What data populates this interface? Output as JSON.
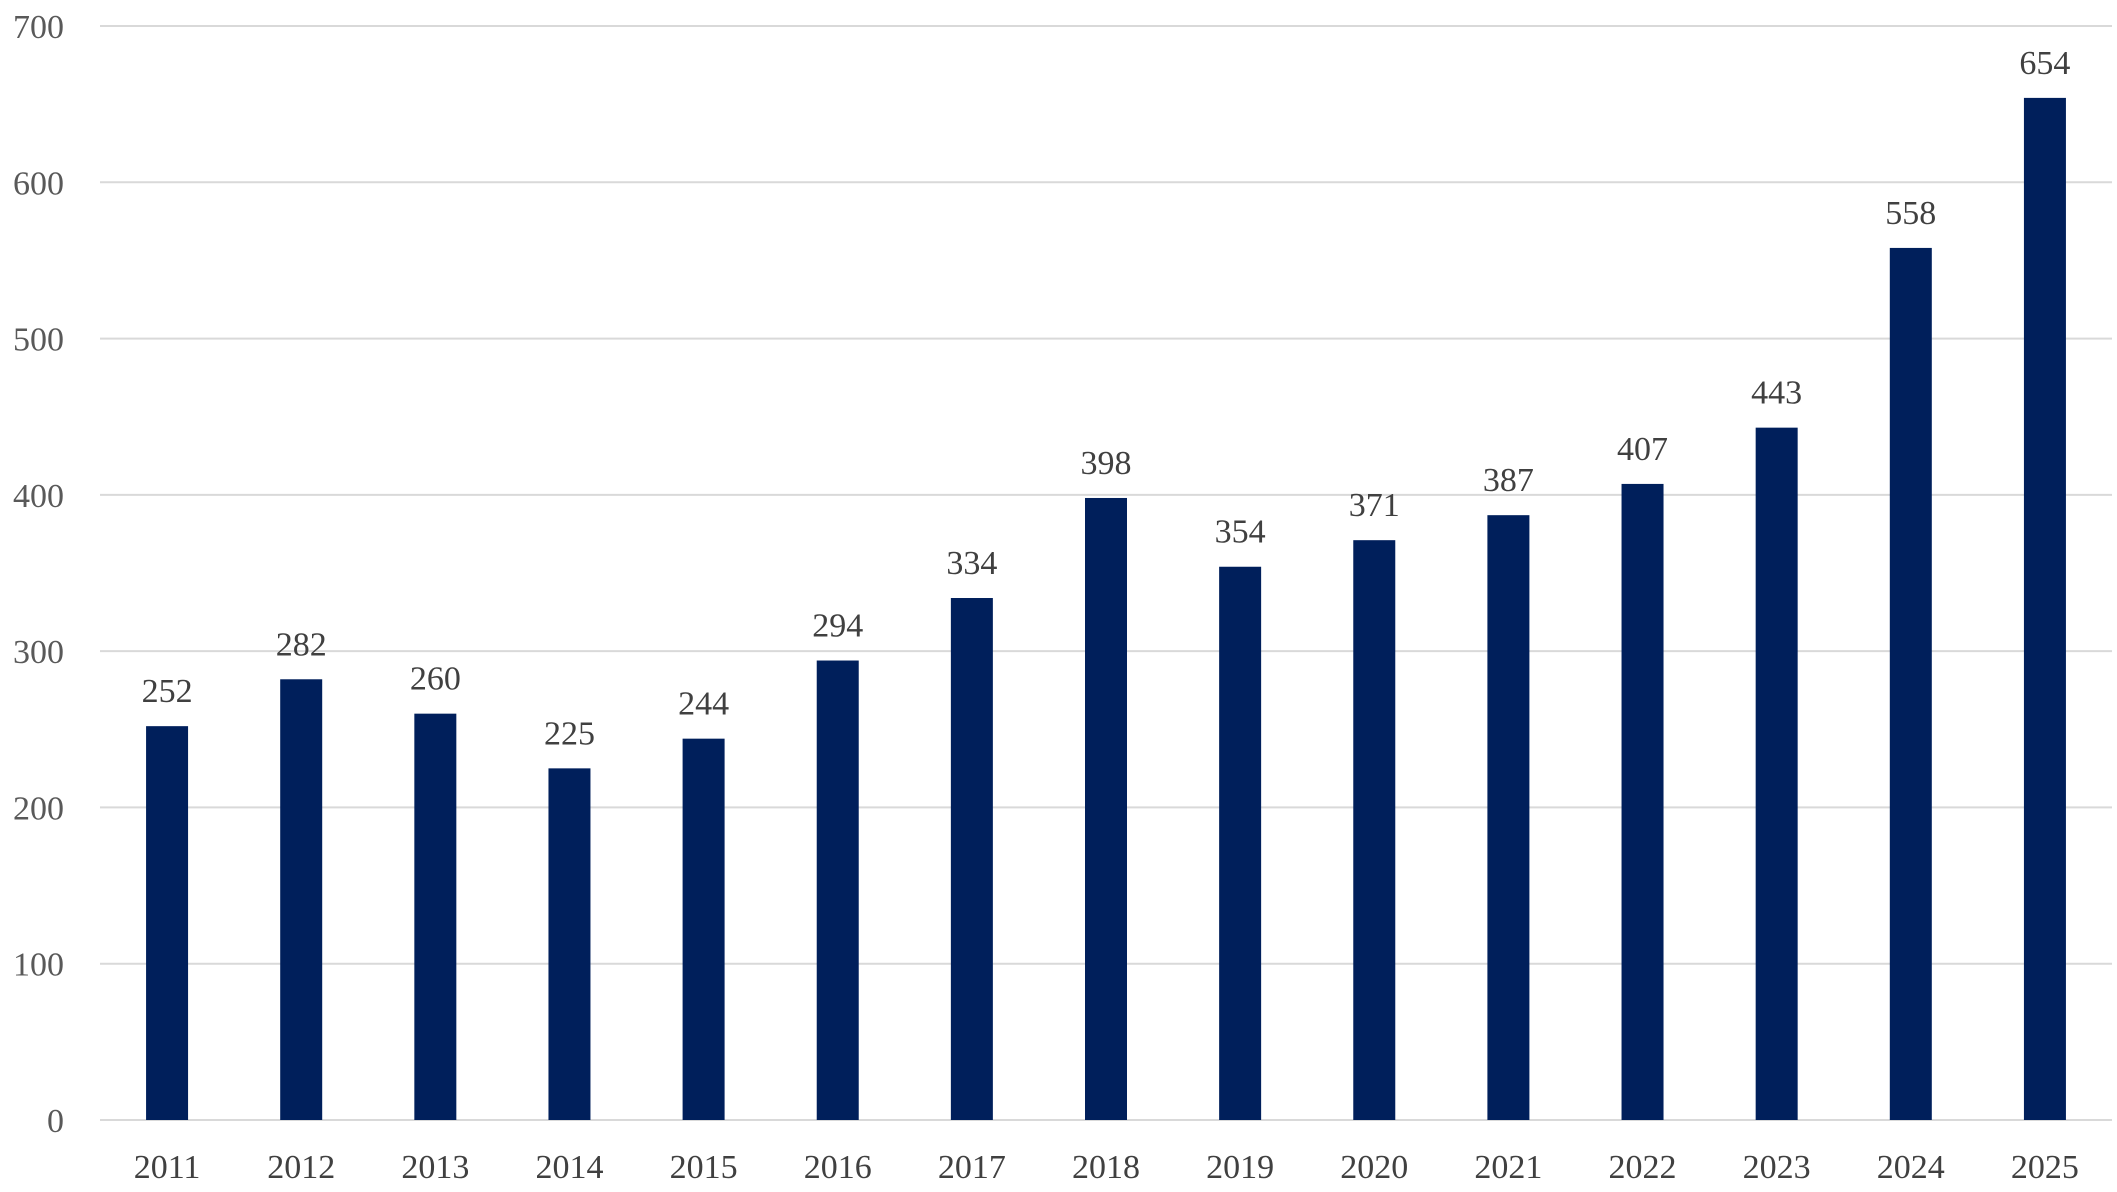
{
  "chart_data": {
    "type": "bar",
    "categories": [
      "2011",
      "2012",
      "2013",
      "2014",
      "2015",
      "2016",
      "2017",
      "2018",
      "2019",
      "2020",
      "2021",
      "2022",
      "2023",
      "2024",
      "2025"
    ],
    "values": [
      252,
      282,
      260,
      225,
      244,
      294,
      334,
      398,
      354,
      371,
      387,
      407,
      443,
      558,
      654
    ],
    "data_labels": [
      "252",
      "282",
      "260",
      "225",
      "244",
      "294",
      "334",
      "398",
      "354",
      "371",
      "387",
      "407",
      "443",
      "558",
      "654"
    ],
    "y_ticks": [
      "0",
      "100",
      "200",
      "300",
      "400",
      "500",
      "600",
      "700"
    ],
    "ylim": [
      0,
      700
    ],
    "grid": true,
    "legend": "none",
    "bar_color": "#001f5b",
    "gridline_color": "#d9d9d9"
  }
}
